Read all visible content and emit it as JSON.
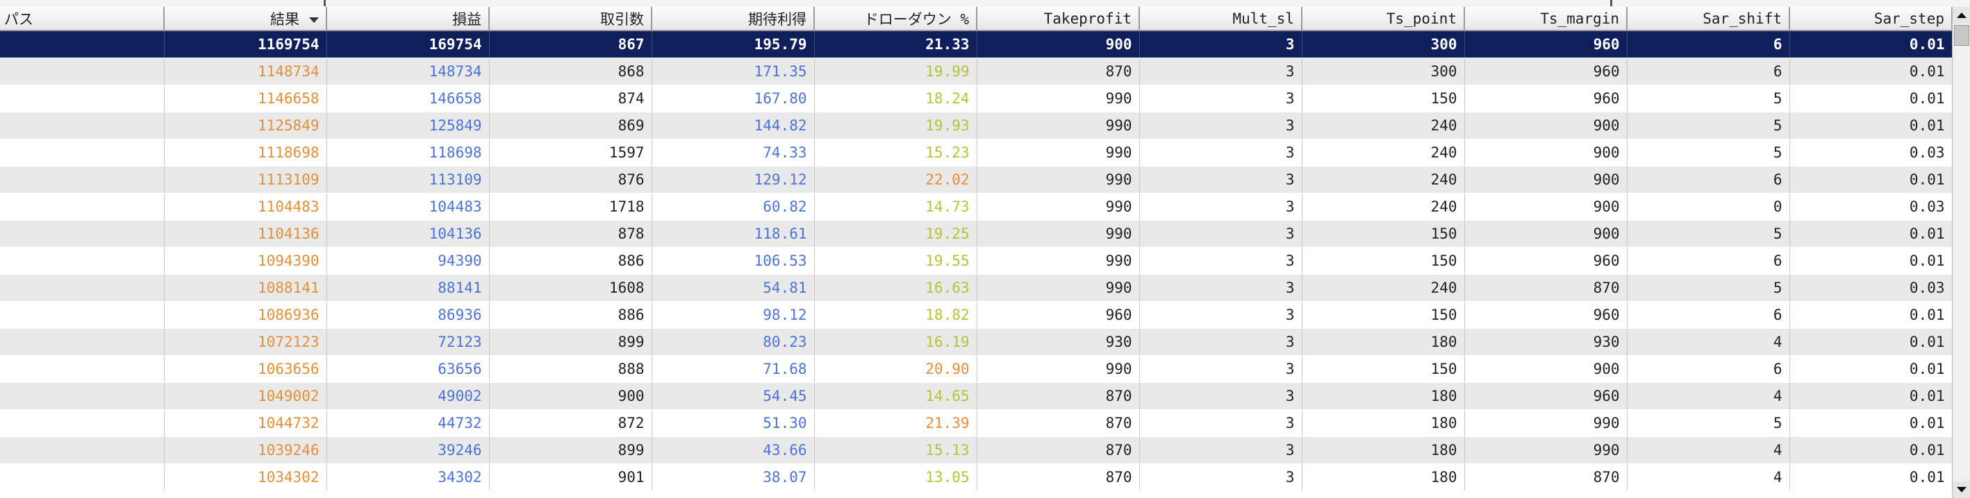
{
  "columns": [
    "パス",
    "結果",
    "損益",
    "取引数",
    "期待利得",
    "ドローダウン %",
    "Takeprofit",
    "Mult_sl",
    "Ts_point",
    "Ts_margin",
    "Sar_shift",
    "Sar_step"
  ],
  "sort_column": "結果",
  "sort_direction": "descending",
  "selected_row": 0,
  "colors": {
    "selected_bg": "#0f1f5c",
    "result": "#e58f3a",
    "profit": "#4c73d6",
    "drawdown_low": "#b7c23a",
    "drawdown_high": "#e58f3a",
    "row_alt": "#e9e9e9"
  },
  "rows": [
    {
      "pass": "",
      "result": "1169754",
      "profit": "169754",
      "trades": "867",
      "expected": "195.79",
      "drawdown": "21.33",
      "takeprofit": "900",
      "mult_sl": "3",
      "ts_point": "300",
      "ts_margin": "960",
      "sar_shift": "6",
      "sar_step": "0.01"
    },
    {
      "pass": "",
      "result": "1148734",
      "profit": "148734",
      "trades": "868",
      "expected": "171.35",
      "drawdown": "19.99",
      "takeprofit": "870",
      "mult_sl": "3",
      "ts_point": "300",
      "ts_margin": "960",
      "sar_shift": "6",
      "sar_step": "0.01"
    },
    {
      "pass": "",
      "result": "1146658",
      "profit": "146658",
      "trades": "874",
      "expected": "167.80",
      "drawdown": "18.24",
      "takeprofit": "990",
      "mult_sl": "3",
      "ts_point": "150",
      "ts_margin": "960",
      "sar_shift": "5",
      "sar_step": "0.01"
    },
    {
      "pass": "",
      "result": "1125849",
      "profit": "125849",
      "trades": "869",
      "expected": "144.82",
      "drawdown": "19.93",
      "takeprofit": "990",
      "mult_sl": "3",
      "ts_point": "240",
      "ts_margin": "900",
      "sar_shift": "5",
      "sar_step": "0.01"
    },
    {
      "pass": "",
      "result": "1118698",
      "profit": "118698",
      "trades": "1597",
      "expected": "74.33",
      "drawdown": "15.23",
      "takeprofit": "990",
      "mult_sl": "3",
      "ts_point": "240",
      "ts_margin": "900",
      "sar_shift": "5",
      "sar_step": "0.03"
    },
    {
      "pass": "",
      "result": "1113109",
      "profit": "113109",
      "trades": "876",
      "expected": "129.12",
      "drawdown": "22.02",
      "takeprofit": "990",
      "mult_sl": "3",
      "ts_point": "240",
      "ts_margin": "900",
      "sar_shift": "6",
      "sar_step": "0.01"
    },
    {
      "pass": "",
      "result": "1104483",
      "profit": "104483",
      "trades": "1718",
      "expected": "60.82",
      "drawdown": "14.73",
      "takeprofit": "990",
      "mult_sl": "3",
      "ts_point": "240",
      "ts_margin": "900",
      "sar_shift": "0",
      "sar_step": "0.03"
    },
    {
      "pass": "",
      "result": "1104136",
      "profit": "104136",
      "trades": "878",
      "expected": "118.61",
      "drawdown": "19.25",
      "takeprofit": "990",
      "mult_sl": "3",
      "ts_point": "150",
      "ts_margin": "900",
      "sar_shift": "5",
      "sar_step": "0.01"
    },
    {
      "pass": "",
      "result": "1094390",
      "profit": "94390",
      "trades": "886",
      "expected": "106.53",
      "drawdown": "19.55",
      "takeprofit": "990",
      "mult_sl": "3",
      "ts_point": "150",
      "ts_margin": "960",
      "sar_shift": "6",
      "sar_step": "0.01"
    },
    {
      "pass": "",
      "result": "1088141",
      "profit": "88141",
      "trades": "1608",
      "expected": "54.81",
      "drawdown": "16.63",
      "takeprofit": "990",
      "mult_sl": "3",
      "ts_point": "240",
      "ts_margin": "870",
      "sar_shift": "5",
      "sar_step": "0.03"
    },
    {
      "pass": "",
      "result": "1086936",
      "profit": "86936",
      "trades": "886",
      "expected": "98.12",
      "drawdown": "18.82",
      "takeprofit": "960",
      "mult_sl": "3",
      "ts_point": "150",
      "ts_margin": "960",
      "sar_shift": "6",
      "sar_step": "0.01"
    },
    {
      "pass": "",
      "result": "1072123",
      "profit": "72123",
      "trades": "899",
      "expected": "80.23",
      "drawdown": "16.19",
      "takeprofit": "930",
      "mult_sl": "3",
      "ts_point": "180",
      "ts_margin": "930",
      "sar_shift": "4",
      "sar_step": "0.01"
    },
    {
      "pass": "",
      "result": "1063656",
      "profit": "63656",
      "trades": "888",
      "expected": "71.68",
      "drawdown": "20.90",
      "takeprofit": "990",
      "mult_sl": "3",
      "ts_point": "150",
      "ts_margin": "900",
      "sar_shift": "6",
      "sar_step": "0.01"
    },
    {
      "pass": "",
      "result": "1049002",
      "profit": "49002",
      "trades": "900",
      "expected": "54.45",
      "drawdown": "14.65",
      "takeprofit": "870",
      "mult_sl": "3",
      "ts_point": "180",
      "ts_margin": "960",
      "sar_shift": "4",
      "sar_step": "0.01"
    },
    {
      "pass": "",
      "result": "1044732",
      "profit": "44732",
      "trades": "872",
      "expected": "51.30",
      "drawdown": "21.39",
      "takeprofit": "870",
      "mult_sl": "3",
      "ts_point": "180",
      "ts_margin": "990",
      "sar_shift": "5",
      "sar_step": "0.01"
    },
    {
      "pass": "",
      "result": "1039246",
      "profit": "39246",
      "trades": "899",
      "expected": "43.66",
      "drawdown": "15.13",
      "takeprofit": "870",
      "mult_sl": "3",
      "ts_point": "180",
      "ts_margin": "990",
      "sar_shift": "4",
      "sar_step": "0.01"
    },
    {
      "pass": "",
      "result": "1034302",
      "profit": "34302",
      "trades": "901",
      "expected": "38.07",
      "drawdown": "13.05",
      "takeprofit": "870",
      "mult_sl": "3",
      "ts_point": "180",
      "ts_margin": "870",
      "sar_shift": "4",
      "sar_step": "0.01"
    }
  ]
}
